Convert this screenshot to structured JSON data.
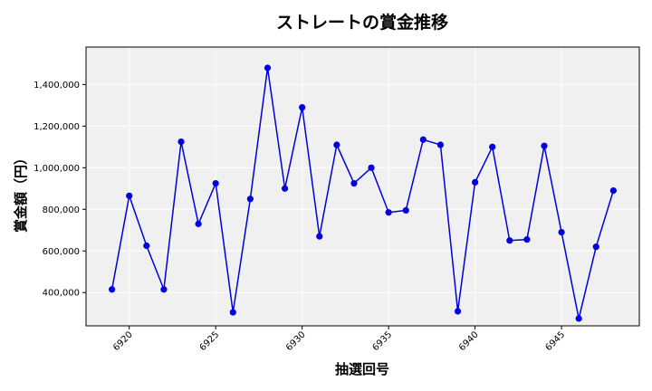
{
  "chart_data": {
    "type": "line",
    "title": "ストレートの賞金推移",
    "xlabel": "抽選回号",
    "ylabel": "賞金額（円）",
    "x": [
      6919,
      6920,
      6921,
      6922,
      6923,
      6924,
      6925,
      6926,
      6927,
      6928,
      6929,
      6930,
      6931,
      6932,
      6933,
      6934,
      6935,
      6936,
      6937,
      6938,
      6939,
      6940,
      6941,
      6942,
      6943,
      6944,
      6945,
      6946,
      6947,
      6948
    ],
    "series": [
      {
        "values": [
          415000,
          865000,
          625000,
          415000,
          1125000,
          730000,
          925000,
          305000,
          850000,
          1480000,
          900000,
          1290000,
          670000,
          1110000,
          925000,
          1000000,
          785000,
          795000,
          1135000,
          1110000,
          310000,
          930000,
          1100000,
          650000,
          655000,
          1105000,
          690000,
          275000,
          620000,
          890000
        ],
        "color": "#0000dd"
      }
    ],
    "xlim": [
      6917.5,
      6949.5
    ],
    "ylim": [
      240000,
      1580000
    ],
    "xticks": [
      6920,
      6925,
      6930,
      6935,
      6940,
      6945
    ],
    "yticks": [
      400000,
      600000,
      800000,
      1000000,
      1200000,
      1400000
    ],
    "ytick_labels": [
      "400,000",
      "600,000",
      "800,000",
      "1,000,000",
      "1,200,000",
      "1,400,000"
    ],
    "grid": true,
    "plot_background": "#f0f0f0"
  }
}
